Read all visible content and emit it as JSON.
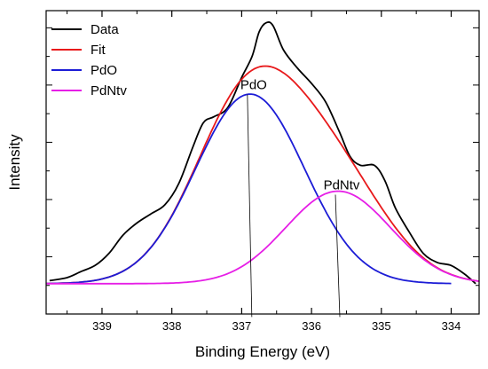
{
  "chart_data": {
    "type": "line",
    "title": "",
    "xlabel": "Binding Energy (eV)",
    "ylabel": "Intensity",
    "xlim": [
      339.8,
      333.6
    ],
    "ylim": [
      0,
      1
    ],
    "x_reversed": true,
    "x_ticks": [
      339,
      338,
      337,
      336,
      335,
      334
    ],
    "y_tick_labels": false,
    "grid": false,
    "legend_position": "top-left",
    "series": [
      {
        "name": "Data",
        "color": "#000000",
        "points": [
          [
            339.75,
            0.11
          ],
          [
            339.5,
            0.12
          ],
          [
            339.3,
            0.14
          ],
          [
            339.1,
            0.16
          ],
          [
            338.9,
            0.2
          ],
          [
            338.7,
            0.26
          ],
          [
            338.5,
            0.3
          ],
          [
            338.3,
            0.33
          ],
          [
            338.1,
            0.36
          ],
          [
            337.9,
            0.43
          ],
          [
            337.7,
            0.55
          ],
          [
            337.55,
            0.63
          ],
          [
            337.4,
            0.65
          ],
          [
            337.2,
            0.68
          ],
          [
            337.0,
            0.78
          ],
          [
            336.85,
            0.85
          ],
          [
            336.75,
            0.93
          ],
          [
            336.65,
            0.96
          ],
          [
            336.55,
            0.95
          ],
          [
            336.4,
            0.87
          ],
          [
            336.2,
            0.81
          ],
          [
            336.0,
            0.76
          ],
          [
            335.8,
            0.7
          ],
          [
            335.6,
            0.6
          ],
          [
            335.45,
            0.52
          ],
          [
            335.3,
            0.49
          ],
          [
            335.1,
            0.49
          ],
          [
            334.95,
            0.44
          ],
          [
            334.8,
            0.35
          ],
          [
            334.6,
            0.27
          ],
          [
            334.4,
            0.2
          ],
          [
            334.2,
            0.17
          ],
          [
            334.0,
            0.16
          ],
          [
            333.8,
            0.13
          ],
          [
            333.65,
            0.1
          ]
        ]
      },
      {
        "name": "Fit",
        "color": "#e8191b",
        "curve": {
          "components": [
            {
              "center": 336.88,
              "amplitude": 0.625,
              "sigma": 0.78
            },
            {
              "center": 335.62,
              "amplitude": 0.305,
              "sigma": 0.75
            }
          ],
          "baseline": 0.1,
          "range": [
            339.8,
            333.6
          ]
        }
      },
      {
        "name": "PdO",
        "color": "#1c1cd6",
        "curve": {
          "components": [
            {
              "center": 336.88,
              "amplitude": 0.625,
              "sigma": 0.78
            }
          ],
          "baseline": 0.1,
          "range": [
            339.8,
            334.0
          ]
        }
      },
      {
        "name": "PdNtv",
        "color": "#e61ee6",
        "curve": {
          "components": [
            {
              "center": 335.62,
              "amplitude": 0.305,
              "sigma": 0.75
            }
          ],
          "baseline": 0.1,
          "range": [
            339.8,
            333.6
          ]
        }
      }
    ],
    "annotations": [
      {
        "text": "PdO",
        "x": 336.88,
        "y": 0.735,
        "line_to_y": -0.01
      },
      {
        "text": "PdNtv",
        "x": 335.62,
        "y": 0.405,
        "line_to_y": -0.01
      }
    ]
  }
}
